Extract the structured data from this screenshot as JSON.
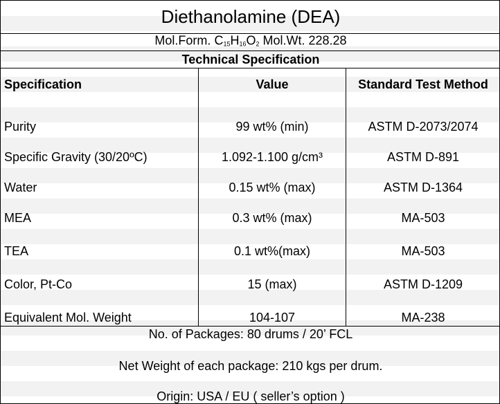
{
  "title": "Diethanolamine (DEA)",
  "formula": {
    "prefix": "Mol.Form.",
    "parts": [
      [
        "C",
        "15"
      ],
      [
        "H",
        "16"
      ],
      [
        "O",
        "2"
      ]
    ],
    "weight": "Mol.Wt. 228.28"
  },
  "section": "Technical Specification",
  "table": {
    "headers": [
      "Specification",
      "Value",
      "Standard Test Method"
    ],
    "rows": [
      [
        "Purity",
        "99 wt% (min)",
        "ASTM D-2073/2074"
      ],
      [
        "Specific Gravity (30/20ºC)",
        "1.092-1.100 g/cm³",
        "ASTM D-891"
      ],
      [
        "Water",
        "0.15 wt% (max)",
        "ASTM D-1364"
      ],
      [
        "MEA",
        "0.3 wt% (max)",
        "MA-503"
      ],
      [
        "TEA",
        "0.1 wt%(max)",
        "MA-503"
      ],
      [
        "Color, Pt-Co",
        "15 (max)",
        "ASTM D-1209"
      ],
      [
        "Equivalent Mol. Weight",
        "104-107",
        "MA-238"
      ]
    ]
  },
  "notes": [
    "No. of Packages: 80 drums / 20’ FCL",
    "Net Weight of each package: 210 kgs per drum.",
    "Origin: USA / EU ( seller’s option )"
  ]
}
